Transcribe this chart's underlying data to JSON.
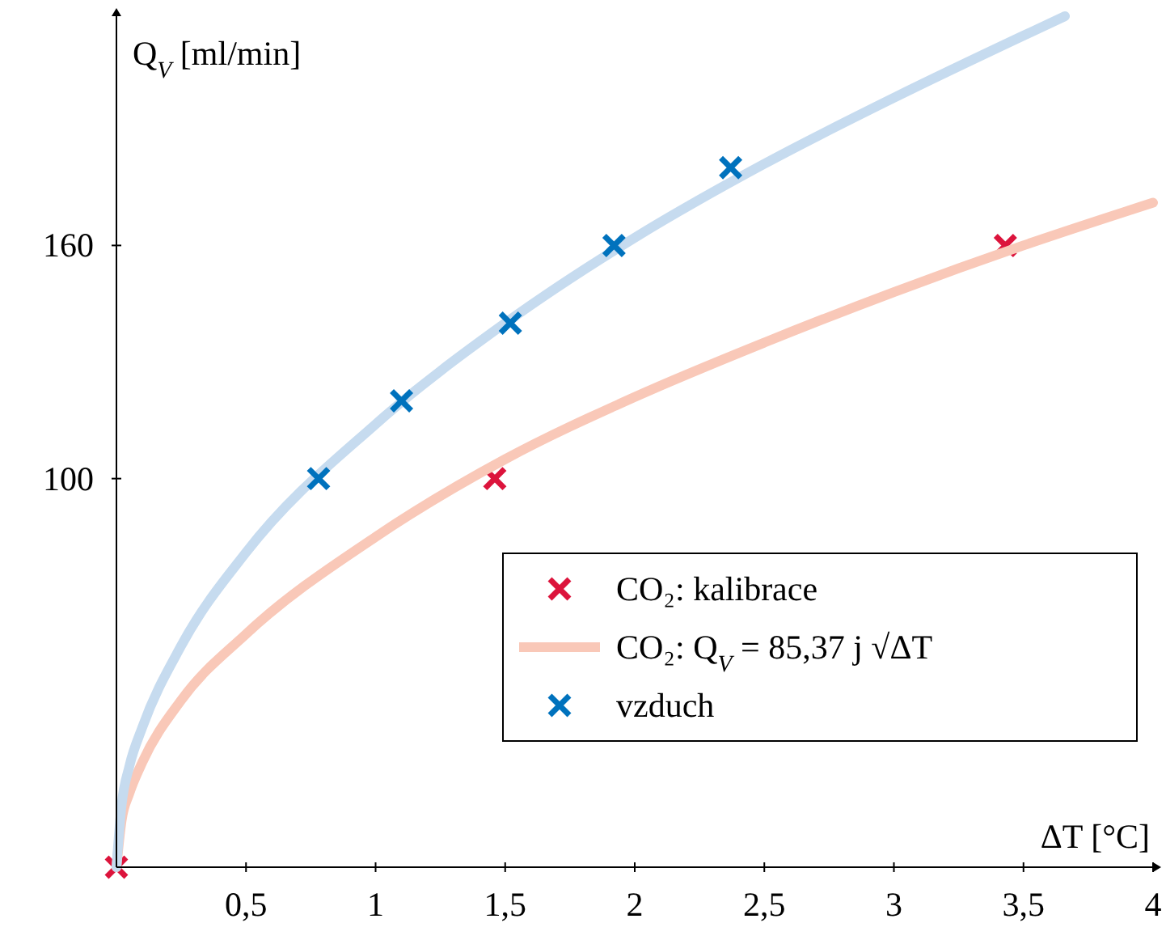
{
  "chart_data": {
    "type": "line",
    "xlabel": "ΔT [°C]",
    "ylabel": "Q$_{V}$ [ml/min]",
    "xlim": [
      0,
      4
    ],
    "ylim": [
      0,
      219
    ],
    "xticks": [
      {
        "value": 0.5,
        "label": "0,5"
      },
      1,
      {
        "value": 1.5,
        "label": "1,5"
      },
      2,
      {
        "value": 2.5,
        "label": "2,5"
      },
      3,
      {
        "value": 3.5,
        "label": "3,5"
      },
      4
    ],
    "yticks": [
      100,
      160
    ],
    "grid": false,
    "legend": "bottom right",
    "line_style": "solid",
    "series": [
      {
        "type": "scatter",
        "name": "CO₂: kalibrace",
        "color": "#dc143c",
        "marker": "cross",
        "x": [
          0,
          1.46,
          3.43
        ],
        "values": [
          0,
          100,
          160
        ]
      },
      {
        "name": "CO₂: Q$_{V}$ = 85,37 j √ΔT",
        "color": "#f9c8b8",
        "marker": "none",
        "x": [
          0,
          0.02,
          0.05,
          0.1,
          0.25,
          0.5,
          1,
          1.5,
          2,
          2.5,
          3,
          3.5,
          4
        ],
        "values": [
          0,
          12,
          19,
          27,
          43,
          60,
          85,
          105,
          121,
          135,
          148,
          160,
          171
        ]
      },
      {
        "color": "#c6dbef",
        "marker": "none",
        "x": [
          0,
          0.02,
          0.05,
          0.1,
          0.25,
          0.5,
          1,
          1.5,
          2,
          2.5,
          3,
          3.5,
          3.66
        ],
        "values": [
          0,
          16,
          26,
          36,
          57,
          81,
          114,
          140,
          162,
          181,
          198,
          214,
          219
        ]
      },
      {
        "type": "scatter",
        "name": "vzduch",
        "color": "#0072bd",
        "marker": "cross",
        "x": [
          0.78,
          1.1,
          1.52,
          1.92,
          2.37
        ],
        "values": [
          100,
          120,
          140,
          160,
          180
        ]
      }
    ]
  }
}
